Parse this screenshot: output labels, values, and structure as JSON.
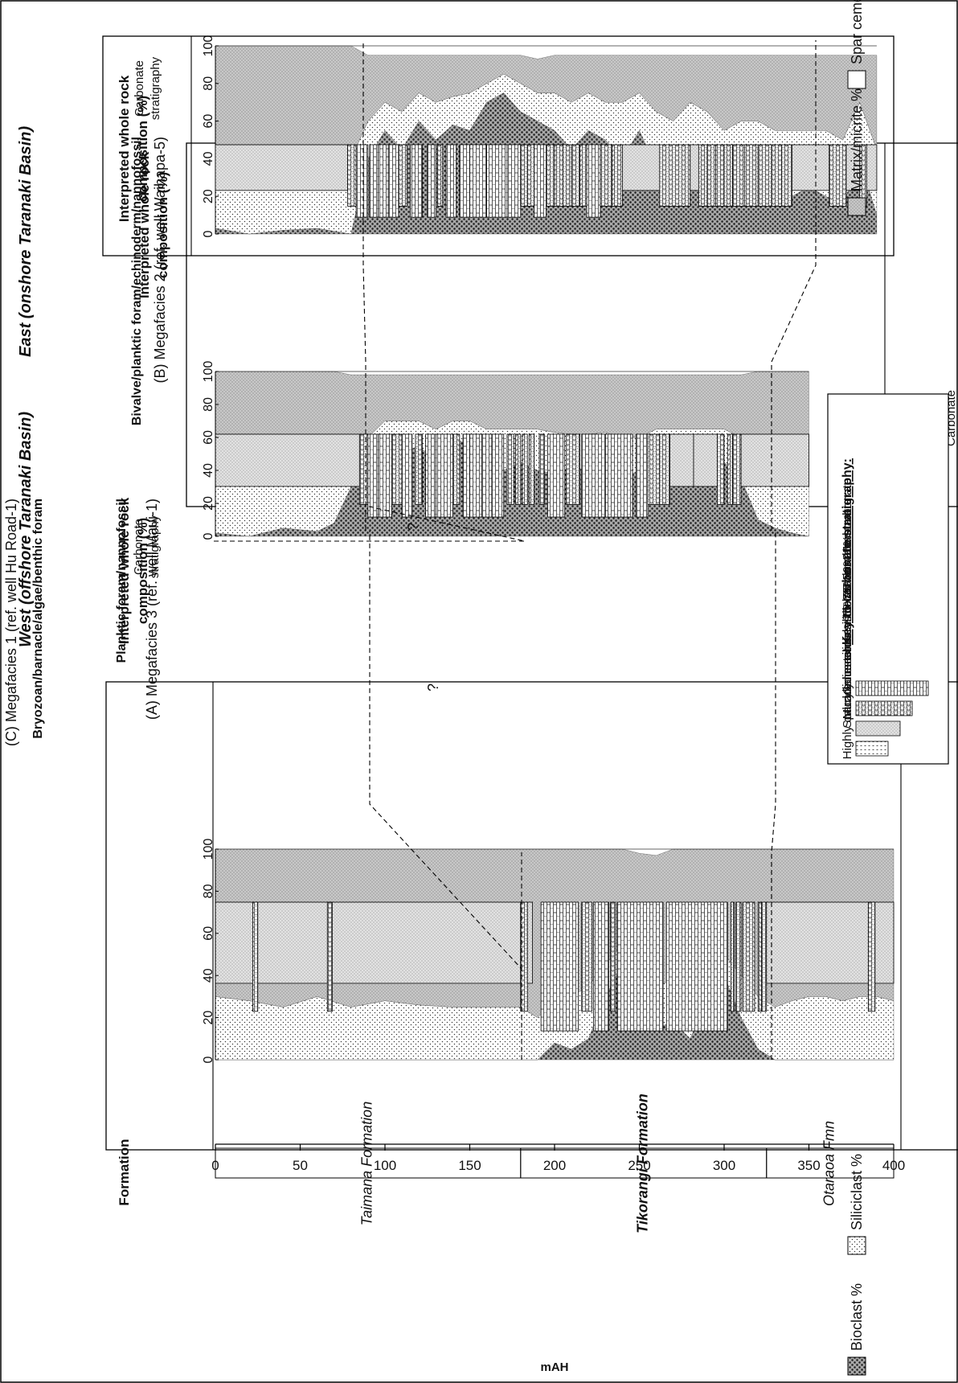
{
  "figure": {
    "west_heading": "West  (offshore Taranaki Basin)",
    "east_heading": "East  (onshore Taranaki Basin)"
  },
  "panels": [
    {
      "id": "A",
      "title": "(A) Megafacies 3 (ref. well Maui-1)",
      "subtitle": "Planktic foram/nannofossil",
      "strat_label_1": "Carbonate",
      "strat_label_2": "stratigraphy",
      "ylabel_1": "Interpreted whole rock",
      "ylabel_2": "composition (%)",
      "question_marks": [
        "?",
        "?"
      ]
    },
    {
      "id": "B",
      "title": "(B) Megafacies 2 (ref. well Waihapa-5)",
      "subtitle": "Bivalve/planktic foram/echinoderm/nannofossil",
      "strat_label_1": "Carbonate",
      "strat_label_2": "stratigraphy",
      "ylabel_1": "Interpreted whole rock",
      "ylabel_2": "composition (%)"
    },
    {
      "id": "C",
      "title": "(C) Megafacies 1 (ref. well Hu Road-1)",
      "subtitle": "Bryozoan/barnacle/algae/benthic foram",
      "strat_label_1": "Carbonate",
      "strat_label_2": "stratigraphy",
      "ylabel_1": "Interpreted whole rock",
      "ylabel_2": "composition (%)"
    }
  ],
  "formation": {
    "header": "Formation",
    "units": [
      {
        "name": "Taimana Formation",
        "from": 0,
        "to": 180
      },
      {
        "name": "Tikorangi Formation",
        "from": 180,
        "to": 325
      },
      {
        "name": "Otaraoa Fmn",
        "from": 325,
        "to": 400
      }
    ]
  },
  "legend": {
    "components": [
      "Bioclast %",
      "Siliciclast %",
      "Matrix/micrite %",
      "Spar cement %"
    ]
  },
  "key": {
    "title": "Key to carbonate stratigraphy:",
    "items": [
      "Calcareous siliciclastite <25% carbonate",
      "Highly calcareous siliciclastite 25-50% carbonate",
      "Muddy limestone - 50-75% carbonate",
      "Sparry limestone - >75% carbonate"
    ]
  },
  "chart_data": {
    "type": "area",
    "xlabel": "mAH",
    "xlim": [
      0,
      400
    ],
    "x_ticks": [
      "0",
      "50",
      "100",
      "150",
      "200",
      "250",
      "300",
      "350",
      "400"
    ],
    "ylim": [
      0,
      100
    ],
    "y_ticks": [
      "0",
      "20",
      "40",
      "60",
      "80",
      "100"
    ],
    "series_names": [
      "Bioclast %",
      "Siliciclast %",
      "Matrix/micrite %",
      "Spar cement %"
    ],
    "panels": [
      {
        "id": "A",
        "x": [
          0,
          20,
          40,
          60,
          80,
          100,
          120,
          140,
          160,
          180,
          190,
          200,
          210,
          220,
          230,
          240,
          250,
          260,
          270,
          280,
          290,
          300,
          310,
          320,
          330,
          340,
          350,
          360,
          370,
          380,
          390,
          400
        ],
        "bioclast": [
          0,
          0,
          0,
          0,
          0,
          0,
          0,
          0,
          0,
          0,
          0,
          8,
          5,
          10,
          30,
          45,
          25,
          15,
          18,
          10,
          28,
          40,
          20,
          5,
          0,
          0,
          0,
          0,
          0,
          0,
          0,
          0
        ],
        "siliciclast": [
          30,
          28,
          25,
          30,
          25,
          28,
          26,
          25,
          25,
          25,
          20,
          20,
          25,
          25,
          15,
          10,
          15,
          20,
          20,
          25,
          15,
          10,
          20,
          25,
          25,
          28,
          30,
          30,
          28,
          30,
          30,
          28
        ],
        "matrix": [
          70,
          72,
          75,
          70,
          75,
          72,
          74,
          75,
          75,
          75,
          80,
          72,
          70,
          65,
          55,
          45,
          58,
          62,
          62,
          65,
          57,
          50,
          60,
          70,
          75,
          72,
          70,
          70,
          72,
          70,
          70,
          72
        ],
        "strat": [
          {
            "from": 0,
            "to": 180,
            "level": 2
          },
          {
            "from": 22,
            "to": 25,
            "level": 3
          },
          {
            "from": 66,
            "to": 69,
            "level": 3
          },
          {
            "from": 180,
            "to": 184,
            "level": 3
          },
          {
            "from": 184,
            "to": 187,
            "level": 2
          },
          {
            "from": 192,
            "to": 214,
            "level": 4
          },
          {
            "from": 216,
            "to": 222,
            "level": 3
          },
          {
            "from": 223,
            "to": 232,
            "level": 4
          },
          {
            "from": 233,
            "to": 236,
            "level": 3
          },
          {
            "from": 237,
            "to": 264,
            "level": 4
          },
          {
            "from": 266,
            "to": 302,
            "level": 4
          },
          {
            "from": 304,
            "to": 306,
            "level": 3
          },
          {
            "from": 307,
            "to": 310,
            "level": 3
          },
          {
            "from": 311,
            "to": 318,
            "level": 3
          },
          {
            "from": 320,
            "to": 322,
            "level": 3
          },
          {
            "from": 322,
            "to": 325,
            "level": 3
          },
          {
            "from": 325,
            "to": 400,
            "level": 2
          },
          {
            "from": 385,
            "to": 389,
            "level": 3
          }
        ]
      },
      {
        "id": "B",
        "x": [
          0,
          20,
          40,
          60,
          70,
          80,
          90,
          100,
          110,
          120,
          130,
          140,
          150,
          160,
          170,
          180,
          190,
          200,
          210,
          220,
          230,
          240,
          250,
          260,
          270,
          280,
          290,
          300,
          310,
          320,
          330,
          340,
          350
        ],
        "bioclast": [
          2,
          0,
          5,
          3,
          8,
          30,
          45,
          60,
          50,
          55,
          45,
          60,
          55,
          45,
          40,
          45,
          40,
          38,
          42,
          40,
          38,
          35,
          40,
          45,
          30,
          35,
          40,
          45,
          35,
          10,
          5,
          2,
          0
        ],
        "siliciclast": [
          35,
          35,
          30,
          35,
          30,
          25,
          15,
          10,
          20,
          15,
          20,
          10,
          15,
          20,
          25,
          20,
          25,
          25,
          20,
          22,
          25,
          25,
          20,
          20,
          35,
          30,
          25,
          20,
          25,
          25,
          25,
          30,
          30
        ],
        "matrix": [
          63,
          65,
          65,
          62,
          62,
          43,
          38,
          28,
          28,
          28,
          33,
          28,
          28,
          33,
          33,
          33,
          33,
          35,
          36,
          36,
          35,
          38,
          38,
          33,
          33,
          33,
          33,
          33,
          38,
          65,
          70,
          68,
          70
        ],
        "strat": [
          {
            "from": 0,
            "to": 85,
            "level": 2
          },
          {
            "from": 85,
            "to": 90,
            "level": 3
          },
          {
            "from": 90,
            "to": 96,
            "level": 4
          },
          {
            "from": 96,
            "to": 104,
            "level": 4
          },
          {
            "from": 104,
            "to": 110,
            "level": 3
          },
          {
            "from": 110,
            "to": 116,
            "level": 4
          },
          {
            "from": 118,
            "to": 122,
            "level": 3
          },
          {
            "from": 124,
            "to": 130,
            "level": 4
          },
          {
            "from": 130,
            "to": 140,
            "level": 4
          },
          {
            "from": 140,
            "to": 144,
            "level": 3
          },
          {
            "from": 146,
            "to": 150,
            "level": 4
          },
          {
            "from": 150,
            "to": 157,
            "level": 4
          },
          {
            "from": 157,
            "to": 163,
            "level": 4
          },
          {
            "from": 163,
            "to": 170,
            "level": 4
          },
          {
            "from": 172,
            "to": 176,
            "level": 3
          },
          {
            "from": 177,
            "to": 180,
            "level": 3
          },
          {
            "from": 181,
            "to": 184,
            "level": 3
          },
          {
            "from": 185,
            "to": 188,
            "level": 3
          },
          {
            "from": 191,
            "to": 194,
            "level": 3
          },
          {
            "from": 196,
            "to": 206,
            "level": 4
          },
          {
            "from": 207,
            "to": 215,
            "level": 3
          },
          {
            "from": 216,
            "to": 230,
            "level": 4
          },
          {
            "from": 230,
            "to": 246,
            "level": 4
          },
          {
            "from": 248,
            "to": 255,
            "level": 4
          },
          {
            "from": 255,
            "to": 262,
            "level": 3
          },
          {
            "from": 262,
            "to": 268,
            "level": 3
          },
          {
            "from": 268,
            "to": 282,
            "level": 2
          },
          {
            "from": 282,
            "to": 296,
            "level": 2
          },
          {
            "from": 296,
            "to": 300,
            "level": 3
          },
          {
            "from": 302,
            "to": 305,
            "level": 3
          },
          {
            "from": 305,
            "to": 310,
            "level": 3
          },
          {
            "from": 310,
            "to": 350,
            "level": 2
          }
        ]
      },
      {
        "id": "C",
        "x": [
          0,
          20,
          40,
          60,
          80,
          90,
          100,
          110,
          120,
          130,
          140,
          150,
          160,
          170,
          180,
          190,
          200,
          210,
          220,
          230,
          240,
          250,
          260,
          270,
          280,
          290,
          300,
          310,
          320,
          330,
          340,
          350,
          360,
          370,
          380,
          390
        ],
        "bioclast": [
          3,
          0,
          2,
          3,
          0,
          40,
          55,
          45,
          60,
          50,
          58,
          55,
          70,
          75,
          65,
          60,
          55,
          45,
          55,
          50,
          40,
          55,
          35,
          30,
          45,
          35,
          25,
          30,
          25,
          20,
          20,
          25,
          20,
          15,
          40,
          10
        ],
        "siliciclast": [
          40,
          40,
          35,
          38,
          40,
          20,
          15,
          20,
          15,
          20,
          15,
          20,
          10,
          10,
          15,
          15,
          20,
          25,
          20,
          20,
          30,
          20,
          30,
          30,
          25,
          30,
          30,
          30,
          35,
          35,
          35,
          30,
          35,
          35,
          30,
          35
        ],
        "matrix": [
          57,
          60,
          63,
          59,
          60,
          35,
          25,
          30,
          20,
          25,
          22,
          20,
          15,
          10,
          15,
          18,
          20,
          25,
          20,
          25,
          25,
          20,
          30,
          35,
          25,
          30,
          40,
          35,
          35,
          40,
          40,
          40,
          40,
          45,
          25,
          50
        ],
        "strat": [
          {
            "from": 0,
            "to": 78,
            "level": 2
          },
          {
            "from": 78,
            "to": 83,
            "level": 3
          },
          {
            "from": 83,
            "to": 90,
            "level": 4
          },
          {
            "from": 91,
            "to": 96,
            "level": 4
          },
          {
            "from": 96,
            "to": 102,
            "level": 4
          },
          {
            "from": 102,
            "to": 108,
            "level": 4
          },
          {
            "from": 108,
            "to": 113,
            "level": 3
          },
          {
            "from": 115,
            "to": 122,
            "level": 4
          },
          {
            "from": 125,
            "to": 130,
            "level": 4
          },
          {
            "from": 131,
            "to": 134,
            "level": 3
          },
          {
            "from": 136,
            "to": 142,
            "level": 4
          },
          {
            "from": 144,
            "to": 150,
            "level": 4
          },
          {
            "from": 150,
            "to": 160,
            "level": 4
          },
          {
            "from": 160,
            "to": 172,
            "level": 4
          },
          {
            "from": 172,
            "to": 180,
            "level": 4
          },
          {
            "from": 180,
            "to": 184,
            "level": 3
          },
          {
            "from": 184,
            "to": 188,
            "level": 3
          },
          {
            "from": 188,
            "to": 195,
            "level": 4
          },
          {
            "from": 195,
            "to": 200,
            "level": 3
          },
          {
            "from": 200,
            "to": 205,
            "level": 3
          },
          {
            "from": 205,
            "to": 210,
            "level": 3
          },
          {
            "from": 210,
            "to": 215,
            "level": 3
          },
          {
            "from": 215,
            "to": 219,
            "level": 3
          },
          {
            "from": 219,
            "to": 227,
            "level": 4
          },
          {
            "from": 227,
            "to": 234,
            "level": 3
          },
          {
            "from": 234,
            "to": 240,
            "level": 3
          },
          {
            "from": 240,
            "to": 262,
            "level": 2
          },
          {
            "from": 262,
            "to": 280,
            "level": 3
          },
          {
            "from": 280,
            "to": 285,
            "level": 2
          },
          {
            "from": 285,
            "to": 290,
            "level": 3
          },
          {
            "from": 290,
            "to": 295,
            "level": 3
          },
          {
            "from": 295,
            "to": 300,
            "level": 3
          },
          {
            "from": 300,
            "to": 305,
            "level": 3
          },
          {
            "from": 305,
            "to": 312,
            "level": 3
          },
          {
            "from": 312,
            "to": 320,
            "level": 3
          },
          {
            "from": 320,
            "to": 328,
            "level": 3
          },
          {
            "from": 328,
            "to": 334,
            "level": 3
          },
          {
            "from": 334,
            "to": 340,
            "level": 3
          },
          {
            "from": 340,
            "to": 362,
            "level": 2
          },
          {
            "from": 362,
            "to": 372,
            "level": 3
          },
          {
            "from": 372,
            "to": 380,
            "level": 2
          },
          {
            "from": 380,
            "to": 384,
            "level": 3
          },
          {
            "from": 384,
            "to": 390,
            "level": 2
          }
        ]
      }
    ]
  }
}
